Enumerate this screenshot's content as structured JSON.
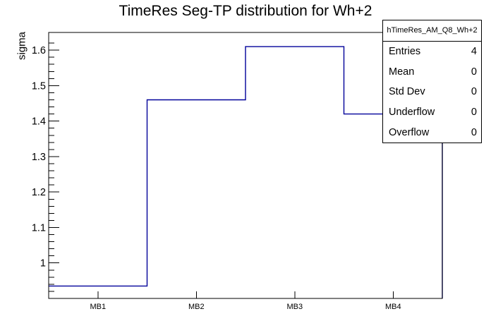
{
  "title": "TimeRes Seg-TP distribution for Wh+2",
  "y_axis": {
    "label": "sigma"
  },
  "x_axis": {
    "labels": [
      "MB1",
      "MB2",
      "MB3",
      "MB4"
    ]
  },
  "stats_box": {
    "header": "hTimeRes_AM_Q8_Wh+2",
    "rows": [
      {
        "label": "Entries",
        "value": "4"
      },
      {
        "label": "Mean",
        "value": "0"
      },
      {
        "label": "Std Dev",
        "value": "0"
      },
      {
        "label": "Underflow",
        "value": "0"
      },
      {
        "label": "Overflow",
        "value": "0"
      }
    ]
  },
  "colors": {
    "line": "#00009a",
    "frame": "#000000",
    "text": "#000000",
    "background": "#ffffff"
  },
  "chart_data": {
    "type": "line",
    "subtype": "histogram-step",
    "title": "TimeRes Seg-TP distribution for Wh+2",
    "categories": [
      "MB1",
      "MB2",
      "MB3",
      "MB4"
    ],
    "values": [
      0.935,
      1.46,
      1.61,
      1.42
    ],
    "xlabel": "",
    "ylabel": "sigma",
    "ylim": [
      0.9,
      1.65
    ],
    "yticks": [
      {
        "value": 1.0,
        "label": "1"
      },
      {
        "value": 1.1,
        "label": "1.1"
      },
      {
        "value": 1.2,
        "label": "1.2"
      },
      {
        "value": 1.3,
        "label": "1.3"
      },
      {
        "value": 1.4,
        "label": "1.4"
      },
      {
        "value": 1.5,
        "label": "1.5"
      },
      {
        "value": 1.6,
        "label": "1.6"
      }
    ],
    "minor_tick_step": 0.02,
    "grid": false,
    "legend": false,
    "line_color": "#00009a",
    "stats": {
      "entries": 4,
      "mean": 0,
      "std_dev": 0,
      "underflow": 0,
      "overflow": 0
    }
  }
}
